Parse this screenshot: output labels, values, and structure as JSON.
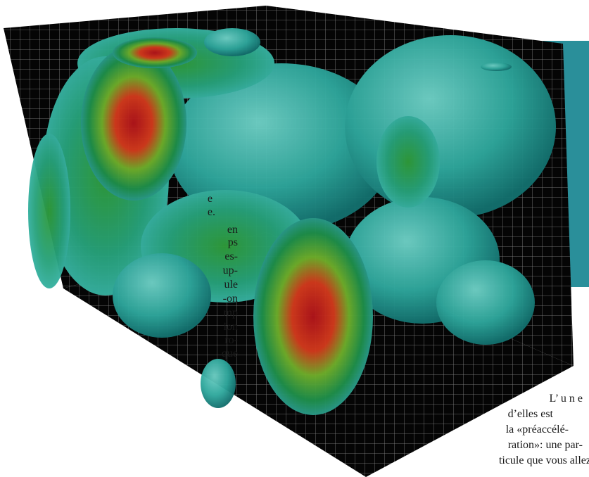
{
  "left_column": {
    "lines": [
      "e",
      "e.",
      "en",
      "ps",
      "es-",
      "up-",
      "ule",
      "-on",
      "mp",
      "ion",
      "ro-",
      "que"
    ]
  },
  "right_column": {
    "lines": [
      "L’ u n e",
      "d’elles est",
      "la «préaccélé-",
      "ration»: une par-",
      "ticule que vous allez"
    ]
  }
}
